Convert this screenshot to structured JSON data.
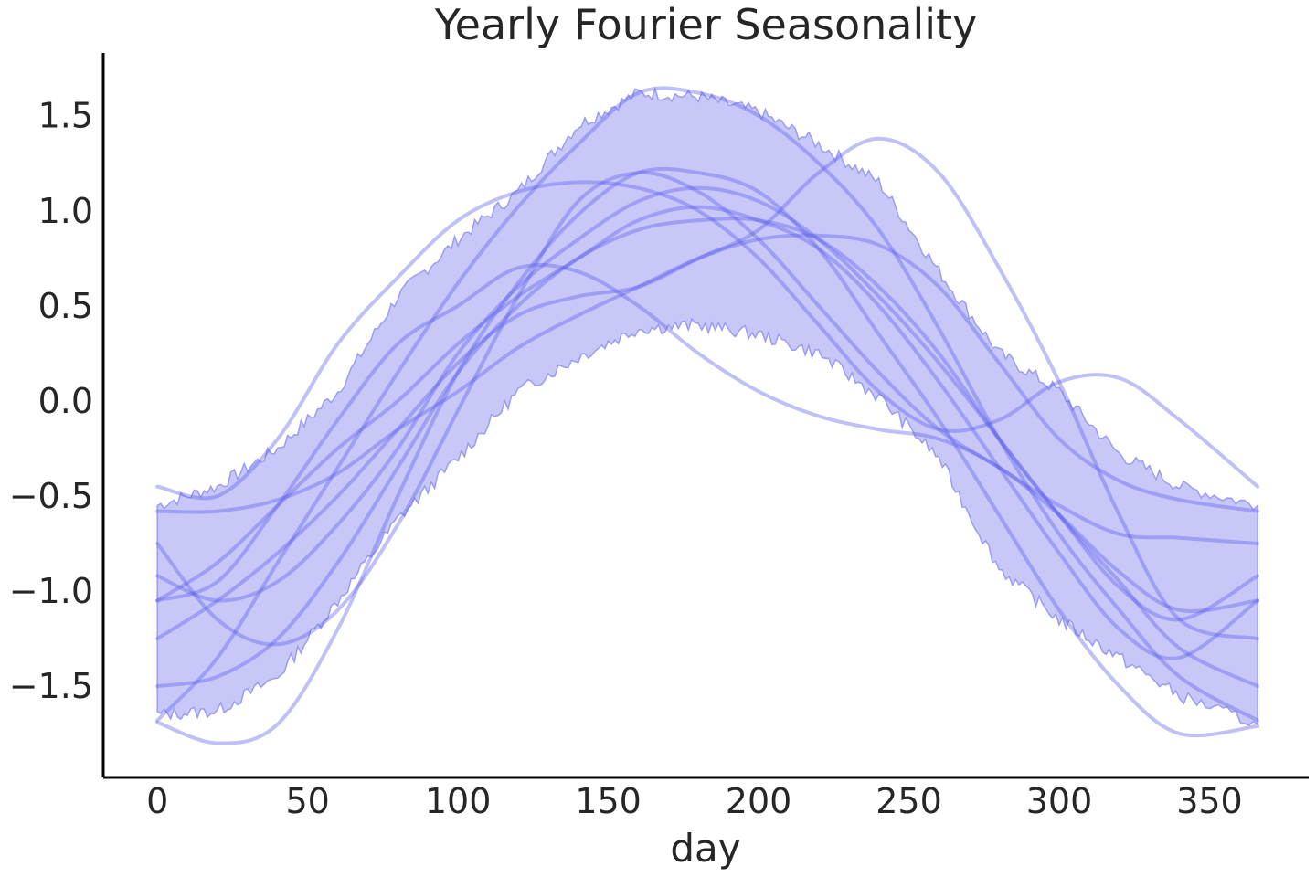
{
  "chart_data": {
    "type": "line",
    "title": "Yearly Fourier Seasonality",
    "xlabel": "day",
    "ylabel": "",
    "xlim": [
      -18,
      383
    ],
    "ylim": [
      -1.98,
      1.83
    ],
    "xticks": [
      0,
      50,
      100,
      150,
      200,
      250,
      300,
      350
    ],
    "xtick_labels": [
      "0",
      "50",
      "100",
      "150",
      "200",
      "250",
      "300",
      "350"
    ],
    "yticks": [
      1.5,
      1.0,
      0.5,
      0.0,
      -0.5,
      -1.0,
      -1.5
    ],
    "ytick_labels": [
      "1.5",
      "1.0",
      "0.5",
      "0.0",
      "−0.5",
      "−1.0",
      "−1.5"
    ],
    "grid": false,
    "legend": "none",
    "colors": {
      "series": "#5a5aec",
      "band": "#c7c8f8",
      "band_edge": "#9a9cf2",
      "text": "#262626",
      "axis": "#000000"
    },
    "band": {
      "name": "",
      "x": [
        0,
        20,
        40,
        60,
        80,
        100,
        120,
        140,
        160,
        180,
        200,
        220,
        240,
        260,
        280,
        300,
        320,
        340,
        366
      ],
      "lower": [
        -1.65,
        -1.63,
        -1.45,
        -1.05,
        -0.62,
        -0.3,
        0.05,
        0.23,
        0.38,
        0.4,
        0.35,
        0.25,
        0.02,
        -0.3,
        -0.88,
        -1.15,
        -1.35,
        -1.55,
        -1.7
      ],
      "upper": [
        -0.55,
        -0.45,
        -0.25,
        0.05,
        0.55,
        0.85,
        1.1,
        1.45,
        1.62,
        1.6,
        1.52,
        1.35,
        1.15,
        0.68,
        0.25,
        0.05,
        -0.28,
        -0.45,
        -0.55
      ]
    },
    "series": [
      {
        "x": [
          0,
          20,
          40,
          60,
          80,
          100,
          120,
          140,
          160,
          180,
          200,
          220,
          240,
          260,
          280,
          300,
          320,
          340,
          366
        ],
        "values": [
          -1.69,
          -1.8,
          -1.7,
          -1.2,
          -0.5,
          0.15,
          0.62,
          0.98,
          1.2,
          1.2,
          1.1,
          0.8,
          0.35,
          -0.1,
          -0.6,
          -1.1,
          -1.5,
          -1.75,
          -1.71
        ]
      },
      {
        "x": [
          0,
          20,
          40,
          60,
          80,
          100,
          120,
          140,
          160,
          180,
          200,
          220,
          240,
          260,
          280,
          300,
          320,
          340,
          366
        ],
        "values": [
          -0.45,
          -0.5,
          -0.2,
          0.3,
          0.65,
          0.95,
          1.1,
          1.15,
          1.12,
          1.0,
          0.75,
          0.4,
          0.05,
          -0.15,
          -0.1,
          0.1,
          0.12,
          -0.1,
          -0.45
        ]
      },
      {
        "x": [
          0,
          20,
          40,
          60,
          80,
          100,
          120,
          140,
          160,
          180,
          200,
          220,
          240,
          260,
          280,
          300,
          320,
          340,
          366
        ],
        "values": [
          -1.05,
          -0.95,
          -0.55,
          -0.1,
          0.3,
          0.5,
          0.7,
          0.68,
          0.5,
          0.25,
          0.05,
          -0.08,
          -0.15,
          -0.2,
          -0.35,
          -0.6,
          -0.9,
          -1.1,
          -1.05
        ]
      },
      {
        "x": [
          0,
          20,
          40,
          60,
          80,
          100,
          120,
          140,
          160,
          180,
          200,
          220,
          240,
          260,
          280,
          300,
          320,
          340,
          366
        ],
        "values": [
          -1.68,
          -1.35,
          -0.85,
          -0.35,
          0.15,
          0.62,
          1.02,
          1.35,
          1.62,
          1.62,
          1.5,
          1.25,
          0.9,
          0.38,
          -0.2,
          -0.7,
          -1.1,
          -1.45,
          -1.68
        ]
      },
      {
        "x": [
          0,
          20,
          40,
          60,
          80,
          100,
          120,
          140,
          160,
          180,
          200,
          220,
          240,
          260,
          280,
          300,
          320,
          340,
          366
        ],
        "values": [
          -0.75,
          -1.15,
          -1.28,
          -1.1,
          -0.65,
          -0.05,
          0.55,
          1.05,
          1.2,
          1.1,
          0.85,
          0.5,
          0.15,
          -0.15,
          -0.35,
          -0.55,
          -0.7,
          -0.72,
          -0.75
        ]
      },
      {
        "x": [
          0,
          20,
          40,
          60,
          80,
          100,
          120,
          140,
          160,
          180,
          200,
          220,
          240,
          260,
          280,
          300,
          320,
          340,
          366
        ],
        "values": [
          -1.25,
          -1.05,
          -0.8,
          -0.5,
          -0.15,
          0.2,
          0.45,
          0.55,
          0.6,
          0.75,
          0.9,
          1.2,
          1.38,
          1.2,
          0.7,
          0.1,
          -0.6,
          -1.15,
          -1.25
        ]
      },
      {
        "x": [
          0,
          20,
          40,
          60,
          80,
          100,
          120,
          140,
          160,
          180,
          200,
          220,
          240,
          260,
          280,
          300,
          320,
          340,
          366
        ],
        "values": [
          -0.58,
          -0.58,
          -0.52,
          -0.38,
          -0.15,
          0.05,
          0.28,
          0.45,
          0.6,
          0.75,
          0.85,
          0.87,
          0.82,
          0.6,
          0.2,
          -0.2,
          -0.42,
          -0.52,
          -0.58
        ]
      },
      {
        "x": [
          0,
          20,
          40,
          60,
          80,
          100,
          120,
          140,
          160,
          180,
          200,
          220,
          240,
          260,
          280,
          300,
          320,
          340,
          366
        ],
        "values": [
          -0.92,
          -1.05,
          -0.95,
          -0.65,
          -0.25,
          0.25,
          0.6,
          0.85,
          1.05,
          1.12,
          1.05,
          0.85,
          0.55,
          0.2,
          -0.2,
          -0.6,
          -0.98,
          -1.15,
          -0.92
        ]
      },
      {
        "x": [
          0,
          20,
          40,
          60,
          80,
          100,
          120,
          140,
          160,
          180,
          200,
          220,
          240,
          260,
          280,
          300,
          320,
          340,
          366
        ],
        "values": [
          -1.5,
          -1.45,
          -1.25,
          -0.85,
          -0.35,
          0.15,
          0.5,
          0.75,
          0.9,
          0.95,
          0.95,
          0.85,
          0.6,
          0.25,
          -0.2,
          -0.6,
          -0.95,
          -1.3,
          -1.5
        ]
      },
      {
        "x": [
          0,
          20,
          40,
          60,
          80,
          100,
          120,
          140,
          160,
          180,
          200,
          220,
          240,
          260,
          280,
          300,
          320,
          340,
          366
        ],
        "values": [
          -1.05,
          -0.85,
          -0.55,
          -0.25,
          0.0,
          0.3,
          0.55,
          0.75,
          0.95,
          1.02,
          0.95,
          0.8,
          0.5,
          0.1,
          -0.35,
          -0.8,
          -1.2,
          -1.35,
          -1.05
        ]
      }
    ]
  }
}
